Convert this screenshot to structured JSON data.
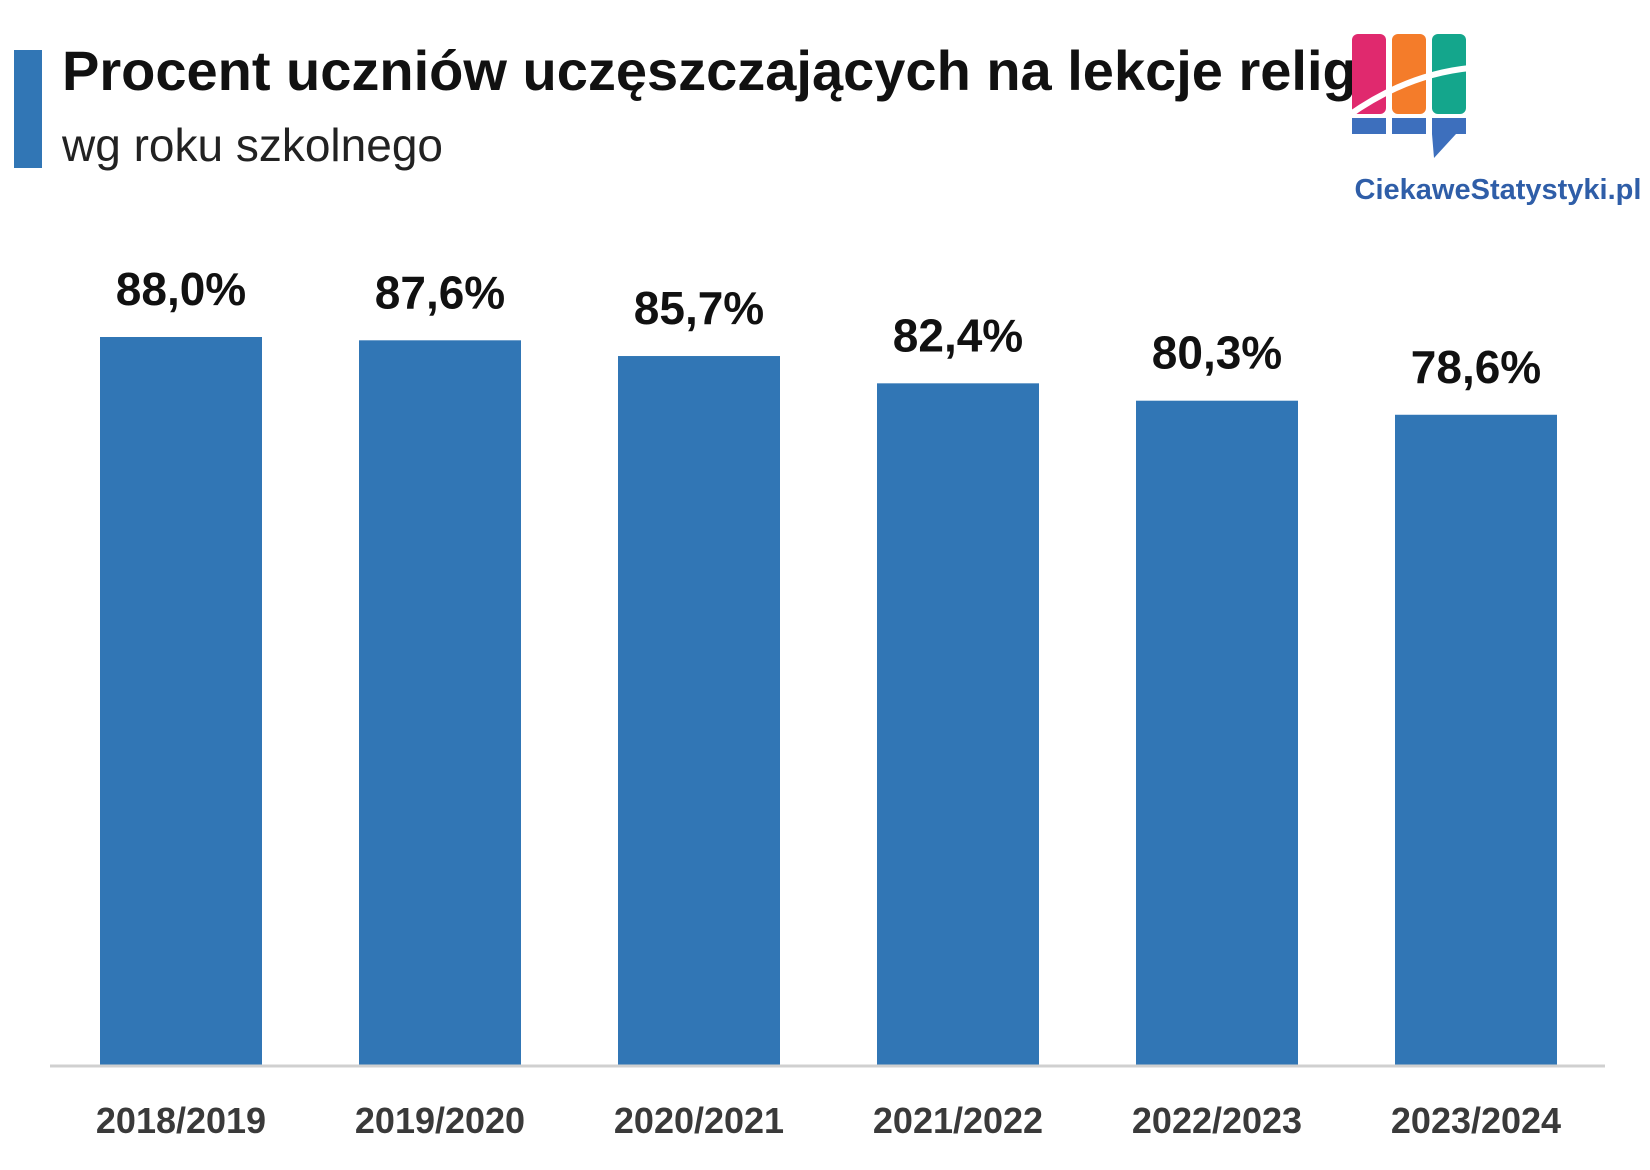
{
  "header": {
    "title": "Procent uczniów uczęszczających na lekcje religii",
    "subtitle": "wg roku szkolnego"
  },
  "branding": {
    "logo_icon": "bar-chart-speech-bubble-icon",
    "site_name": "CiekaweStatystyki.pl"
  },
  "colors": {
    "bar": "#3176b5",
    "accent": "#3176b5",
    "axis": "#d0d0d0",
    "logo_pink": "#e0296e",
    "logo_orange": "#f47c2a",
    "logo_teal": "#14a68c",
    "logo_blue": "#3d6fbd",
    "logo_text": "#2f5ea8"
  },
  "chart_data": {
    "type": "bar",
    "title": "Procent uczniów uczęszczających na lekcje religii",
    "subtitle": "wg roku szkolnego",
    "categories": [
      "2018/2019",
      "2019/2020",
      "2020/2021",
      "2021/2022",
      "2022/2023",
      "2023/2024"
    ],
    "values": [
      88.0,
      87.6,
      85.7,
      82.4,
      80.3,
      78.6
    ],
    "value_labels": [
      "88,0%",
      "87,6%",
      "85,7%",
      "82,4%",
      "80,3%",
      "78,6%"
    ],
    "xlabel": "",
    "ylabel": "",
    "ylim": [
      0,
      88.0
    ],
    "grid": false,
    "legend": "none"
  }
}
